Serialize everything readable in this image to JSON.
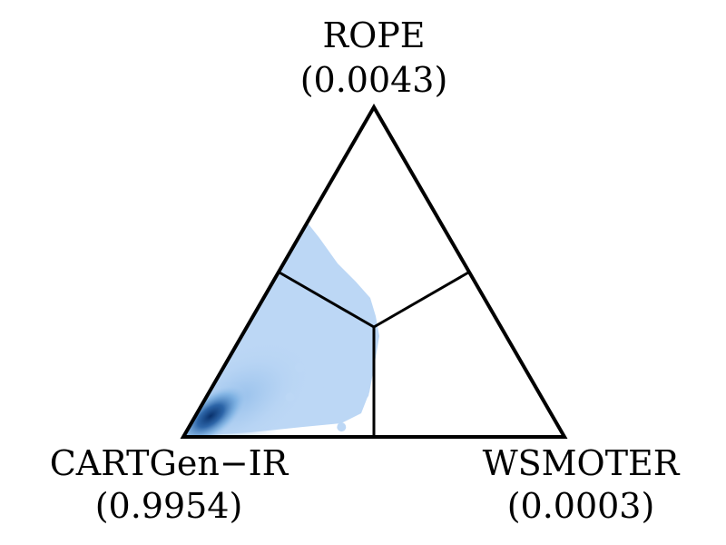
{
  "chart_data": {
    "type": "scatter",
    "subtype": "ternary-density",
    "title": "",
    "vertices": [
      {
        "name": "ROPE",
        "value": "(0.0043)",
        "position": "top"
      },
      {
        "name": "CARTGen−IR",
        "value": "(0.9954)",
        "position": "bottom-left"
      },
      {
        "name": "WSMOTER",
        "value": "(0.0003)",
        "position": "bottom-right"
      }
    ],
    "dividers": "equal-share barycentric regions meeting at (1/3, 1/3, 1/3)",
    "colors": {
      "frame": "#000000",
      "points_light": "#bcd7f5",
      "density_dark": "#08306b"
    },
    "grid": false,
    "legend": "none",
    "sample_points": [
      {
        "top": 0.44,
        "left": 0.52,
        "right": 0.04
      },
      {
        "top": 0.37,
        "left": 0.45,
        "right": 0.18
      },
      {
        "top": 0.32,
        "left": 0.42,
        "right": 0.26
      },
      {
        "top": 0.29,
        "left": 0.48,
        "right": 0.23
      },
      {
        "top": 0.25,
        "left": 0.53,
        "right": 0.22
      },
      {
        "top": 0.21,
        "left": 0.59,
        "right": 0.2
      },
      {
        "top": 0.15,
        "left": 0.57,
        "right": 0.28
      },
      {
        "top": 0.09,
        "left": 0.58,
        "right": 0.33
      },
      {
        "top": 0.13,
        "left": 0.46,
        "right": 0.41
      },
      {
        "top": 0.03,
        "left": 0.57,
        "right": 0.4
      },
      {
        "top": 0.3,
        "left": 0.39,
        "right": 0.31
      },
      {
        "top": 0.18,
        "left": 0.49,
        "right": 0.33
      },
      {
        "top": 0.06,
        "left": 0.62,
        "right": 0.32
      },
      {
        "top": 0.12,
        "left": 0.66,
        "right": 0.22
      }
    ]
  }
}
